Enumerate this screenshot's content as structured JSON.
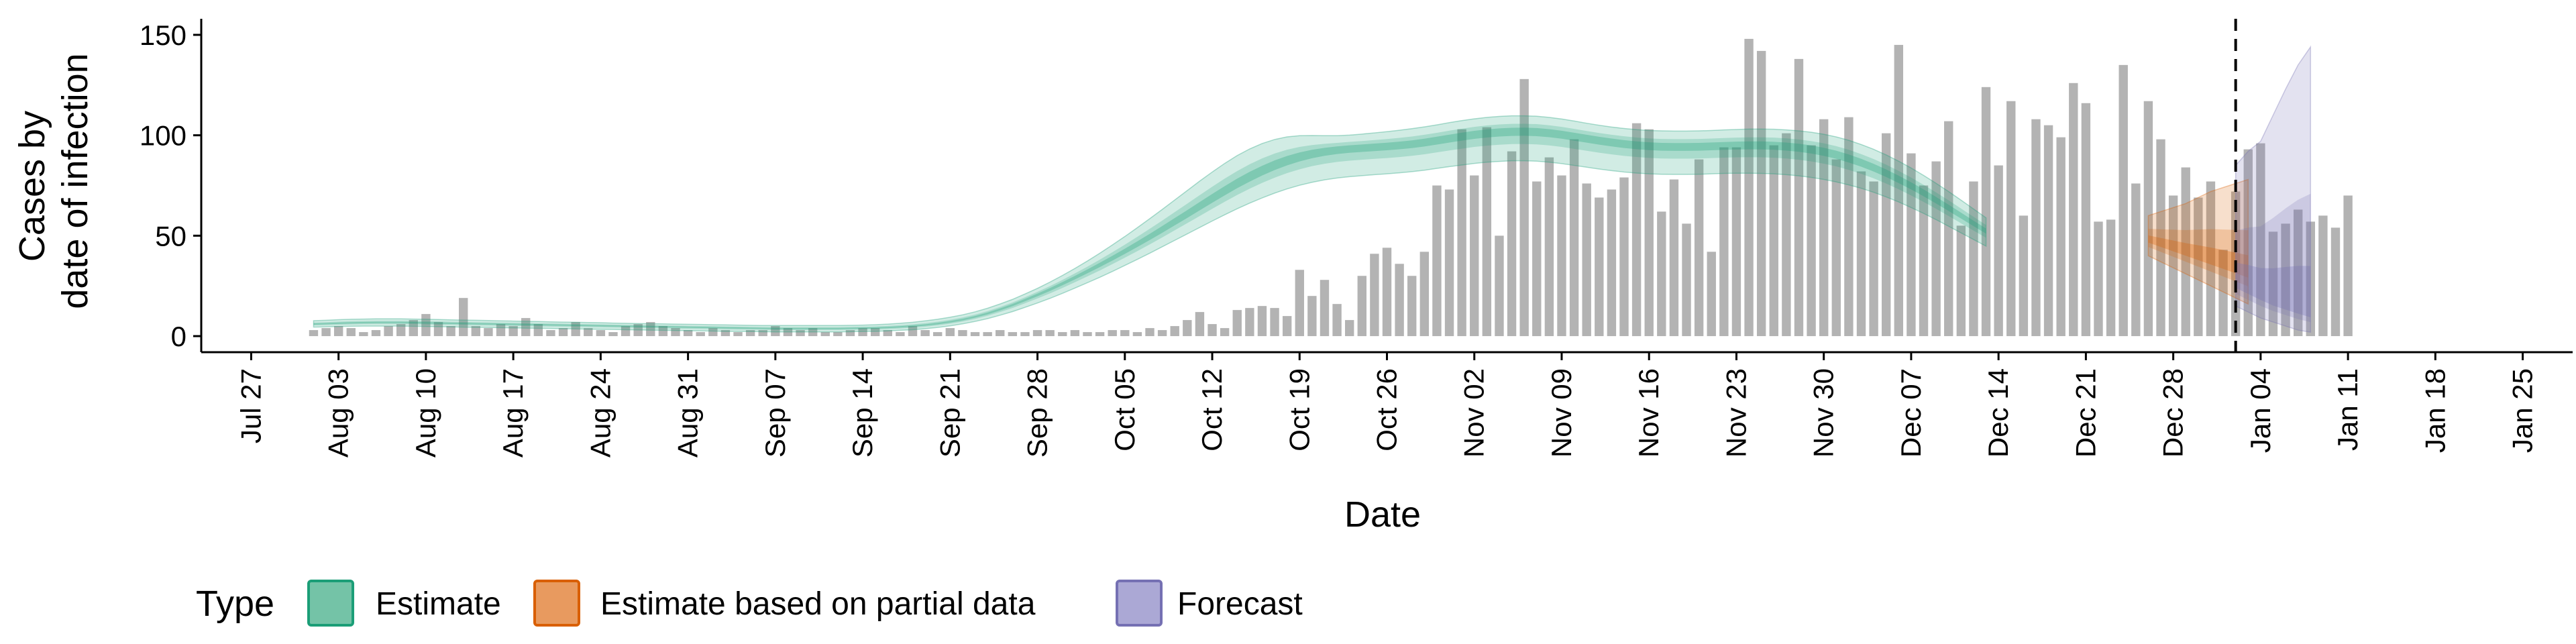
{
  "chart_data": {
    "type": "bar+line",
    "title": "",
    "xlabel": "Date",
    "ylabel_lines": [
      "Cases by",
      "date of infection"
    ],
    "xlim": [
      "2020-07-23",
      "2021-01-29"
    ],
    "ylim": [
      -8,
      158
    ],
    "y_ticks": [
      0,
      50,
      100,
      150
    ],
    "x_ticks": [
      {
        "date": "2020-07-27",
        "label": "Jul 27"
      },
      {
        "date": "2020-08-03",
        "label": "Aug 03"
      },
      {
        "date": "2020-08-10",
        "label": "Aug 10"
      },
      {
        "date": "2020-08-17",
        "label": "Aug 17"
      },
      {
        "date": "2020-08-24",
        "label": "Aug 24"
      },
      {
        "date": "2020-08-31",
        "label": "Aug 31"
      },
      {
        "date": "2020-09-07",
        "label": "Sep 07"
      },
      {
        "date": "2020-09-14",
        "label": "Sep 14"
      },
      {
        "date": "2020-09-21",
        "label": "Sep 21"
      },
      {
        "date": "2020-09-28",
        "label": "Sep 28"
      },
      {
        "date": "2020-10-05",
        "label": "Oct 05"
      },
      {
        "date": "2020-10-12",
        "label": "Oct 12"
      },
      {
        "date": "2020-10-19",
        "label": "Oct 19"
      },
      {
        "date": "2020-10-26",
        "label": "Oct 26"
      },
      {
        "date": "2020-11-02",
        "label": "Nov 02"
      },
      {
        "date": "2020-11-09",
        "label": "Nov 09"
      },
      {
        "date": "2020-11-16",
        "label": "Nov 16"
      },
      {
        "date": "2020-11-23",
        "label": "Nov 23"
      },
      {
        "date": "2020-11-30",
        "label": "Nov 30"
      },
      {
        "date": "2020-12-07",
        "label": "Dec 07"
      },
      {
        "date": "2020-12-14",
        "label": "Dec 14"
      },
      {
        "date": "2020-12-21",
        "label": "Dec 21"
      },
      {
        "date": "2020-12-28",
        "label": "Dec 28"
      },
      {
        "date": "2021-01-04",
        "label": "Jan 04"
      },
      {
        "date": "2021-01-11",
        "label": "Jan 11"
      },
      {
        "date": "2021-01-18",
        "label": "Jan 18"
      },
      {
        "date": "2021-01-25",
        "label": "Jan 25"
      }
    ],
    "vline_date": "2021-01-02",
    "bars": {
      "start_date": "2020-08-01",
      "color": "#b3b3b3",
      "values": [
        3,
        4,
        5,
        4,
        2,
        3,
        5,
        6,
        8,
        11,
        7,
        5,
        19,
        5,
        4,
        6,
        5,
        9,
        6,
        3,
        4,
        7,
        4,
        3,
        2,
        5,
        6,
        7,
        5,
        4,
        3,
        2,
        4,
        3,
        2,
        3,
        3,
        5,
        4,
        3,
        4,
        2,
        2,
        3,
        4,
        4,
        3,
        2,
        5,
        3,
        2,
        4,
        3,
        2,
        2,
        3,
        2,
        2,
        3,
        3,
        2,
        3,
        2,
        2,
        3,
        3,
        2,
        4,
        3,
        5,
        8,
        12,
        6,
        4,
        13,
        14,
        15,
        14,
        10,
        33,
        20,
        28,
        16,
        8,
        30,
        41,
        44,
        36,
        30,
        42,
        75,
        73,
        103,
        80,
        104,
        50,
        92,
        128,
        77,
        89,
        80,
        98,
        76,
        69,
        73,
        79,
        106,
        103,
        62,
        78,
        56,
        88,
        42,
        94,
        94,
        148,
        142,
        95,
        101,
        138,
        95,
        108,
        88,
        109,
        82,
        77,
        101,
        145,
        91,
        75,
        87,
        107,
        55,
        77,
        124,
        85,
        117,
        60,
        108,
        105,
        99,
        126,
        116,
        57,
        58,
        135,
        76,
        117,
        98,
        70,
        84,
        69,
        77,
        43,
        72,
        93,
        96,
        52,
        56,
        63,
        57,
        60,
        54,
        70
      ]
    },
    "series": [
      {
        "name": "Estimate",
        "color": "#1b9e77",
        "start_date": "2020-08-01",
        "median": [
          6,
          6.2,
          6.4,
          6.6,
          6.7,
          6.8,
          6.8,
          6.8,
          6.7,
          6.6,
          6.5,
          6.4,
          6.3,
          6.2,
          6.1,
          6,
          5.9,
          5.8,
          5.7,
          5.6,
          5.5,
          5.4,
          5.3,
          5.2,
          5.1,
          5,
          4.9,
          4.8,
          4.7,
          4.6,
          4.5,
          4.4,
          4.3,
          4.2,
          4.1,
          4,
          3.9,
          3.8,
          3.8,
          3.8,
          3.8,
          3.8,
          3.8,
          3.9,
          4,
          4.1,
          4.3,
          4.6,
          5,
          5.5,
          6.2,
          7.1,
          8.2,
          9.6,
          11.3,
          13.3,
          15.5,
          18,
          20.6,
          23.3,
          26.2,
          29.2,
          32.3,
          35.5,
          38.8,
          42.2,
          45.7,
          49.3,
          53,
          56.8,
          60.6,
          64.5,
          68.4,
          72.2,
          75.9,
          79.3,
          82.4,
          85.2,
          87.6,
          89.6,
          91.2,
          92.4,
          93.3,
          93.9,
          94.3,
          94.7,
          95.1,
          95.6,
          96.2,
          97,
          98,
          99,
          100,
          100.9,
          101.6,
          102.1,
          102.4,
          102.5,
          102.3,
          101.8,
          101,
          100,
          99,
          98,
          97.1,
          96.3,
          95.7,
          95.2,
          94.9,
          94.8,
          94.8,
          94.9,
          95.1,
          95.3,
          95.5,
          95.6,
          95.6,
          95.4,
          95,
          94.4,
          93.5,
          92.3,
          90.8,
          88.9,
          86.7,
          84.2,
          81.4,
          78.3,
          75,
          71.5,
          67.8,
          64,
          60.1,
          56.2,
          52.4
        ],
        "low90": [
          4.5,
          4.6,
          4.8,
          4.9,
          5,
          5,
          5,
          5,
          4.9,
          4.8,
          4.7,
          4.6,
          4.5,
          4.4,
          4.3,
          4.2,
          4.1,
          4,
          3.9,
          3.8,
          3.7,
          3.6,
          3.5,
          3.4,
          3.3,
          3.2,
          3.1,
          3,
          2.9,
          2.8,
          2.7,
          2.6,
          2.5,
          2.4,
          2.3,
          2.3,
          2.2,
          2.1,
          2.1,
          2.1,
          2.1,
          2.1,
          2.1,
          2.2,
          2.3,
          2.4,
          2.6,
          2.9,
          3.2,
          3.7,
          4.3,
          5.1,
          6.1,
          7.3,
          8.7,
          10.4,
          12.2,
          14.3,
          16.5,
          18.8,
          21.3,
          23.9,
          26.6,
          29.3,
          32.2,
          35.2,
          38.2,
          41.3,
          44.5,
          47.7,
          50.9,
          54.1,
          57.3,
          60.4,
          63.4,
          66.2,
          68.8,
          71.2,
          73.3,
          75.1,
          76.6,
          77.8,
          78.7,
          79.4,
          79.9,
          80.4,
          80.8,
          81.3,
          81.9,
          82.6,
          83.5,
          84.4,
          85.2,
          86,
          86.6,
          87,
          87.3,
          87.3,
          87.1,
          86.6,
          85.9,
          85,
          84.1,
          83.2,
          82.4,
          81.7,
          81.2,
          80.8,
          80.6,
          80.5,
          80.5,
          80.6,
          80.8,
          81,
          81.1,
          81.1,
          81,
          80.8,
          80.4,
          79.8,
          79,
          78,
          76.8,
          75.3,
          73.6,
          71.6,
          69.3,
          66.8,
          64,
          61.1,
          58,
          54.7,
          51.4,
          48.1,
          44.8
        ],
        "high90": [
          7.7,
          7.9,
          8.2,
          8.4,
          8.5,
          8.6,
          8.6,
          8.6,
          8.5,
          8.4,
          8.3,
          8.1,
          8,
          7.9,
          7.8,
          7.6,
          7.5,
          7.4,
          7.3,
          7.1,
          7,
          6.9,
          6.8,
          6.7,
          6.5,
          6.4,
          6.3,
          6.2,
          6.1,
          6,
          5.9,
          5.8,
          5.7,
          5.6,
          5.5,
          5.4,
          5.3,
          5.3,
          5.3,
          5.3,
          5.3,
          5.3,
          5.3,
          5.4,
          5.5,
          5.7,
          6,
          6.4,
          6.9,
          7.6,
          8.4,
          9.4,
          10.6,
          12.1,
          13.9,
          16,
          18.3,
          21,
          23.8,
          26.9,
          30.2,
          33.7,
          37.4,
          41.3,
          45.4,
          49.6,
          54,
          58.5,
          63.1,
          67.8,
          72.5,
          77.2,
          81.7,
          86,
          89.9,
          93.2,
          95.9,
          97.9,
          99.2,
          99.8,
          99.9,
          99.8,
          99.8,
          100.1,
          100.6,
          101.2,
          101.8,
          102.5,
          103.3,
          104.2,
          105.2,
          106.3,
          107.3,
          108.2,
          108.9,
          109.4,
          109.7,
          109.7,
          109.5,
          108.9,
          108.1,
          107.1,
          106,
          105,
          104.1,
          103.4,
          102.8,
          102.4,
          102.2,
          102.1,
          102.1,
          102.2,
          102.4,
          102.7,
          102.9,
          103.1,
          103.1,
          103,
          102.7,
          102.2,
          101.5,
          100.5,
          99.2,
          97.5,
          95.4,
          93,
          90.2,
          87.1,
          83.7,
          80,
          76.1,
          72,
          67.7,
          63.3,
          58.9
        ]
      },
      {
        "name": "Estimate based on partial data",
        "color": "#d95f02",
        "start_date": "2020-12-26",
        "median": [
          48,
          46,
          44,
          42,
          40,
          38,
          36,
          34,
          32
        ],
        "low90": [
          40,
          37,
          34,
          31,
          28,
          25,
          22,
          19,
          16
        ],
        "high90": [
          60,
          62,
          64,
          66,
          69,
          72,
          74,
          76,
          78
        ]
      },
      {
        "name": "Forecast",
        "color": "#7570b3",
        "start_date": "2021-01-02",
        "median": [
          26,
          23,
          20,
          17,
          15,
          13,
          11
        ],
        "low90": [
          15,
          12,
          9,
          7,
          5,
          3,
          2
        ],
        "high90": [
          85,
          92,
          97,
          110,
          123,
          135,
          144
        ]
      }
    ]
  },
  "legend": {
    "title": "Type",
    "items": [
      {
        "label": "Estimate",
        "fill": "#74c3a7",
        "stroke": "#1b9e77"
      },
      {
        "label": "Estimate based on partial data",
        "fill": "#e89a5f",
        "stroke": "#d95f02"
      },
      {
        "label": "Forecast",
        "fill": "#aba8d5",
        "stroke": "#7570b3"
      }
    ]
  }
}
